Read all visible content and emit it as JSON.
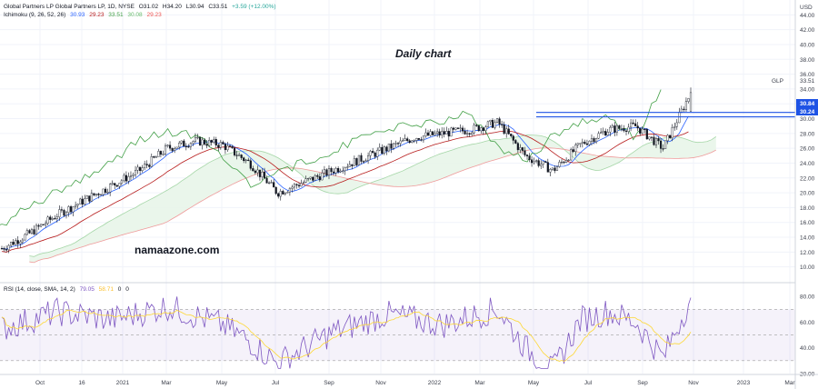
{
  "header": {
    "symbol_line": "Global Partners LP Global Partners LP, 1D, NYSE",
    "o": "O31.02",
    "h": "H34.20",
    "l": "L30.94",
    "c": "C33.51",
    "change": "+3.59 (+12.00%)",
    "ichimoku_label": "Ichimoku (9, 26, 52, 26)",
    "ichimoku_v1": "30.93",
    "ichimoku_v2": "29.23",
    "ichimoku_v3": "33.51",
    "ichimoku_v4": "30.08",
    "ichimoku_v5": "29.23"
  },
  "rsi_header": {
    "label": "RSI (14, close, SMA, 14, 2)",
    "v1": "79.05",
    "v2": "58.71",
    "v3": "0",
    "v4": "0"
  },
  "annotations": {
    "daily_chart": "Daily chart",
    "watermark": "namaazone.com"
  },
  "currency": "USD",
  "ticker": {
    "symbol": "GLP",
    "price": "33.51",
    "level_upper": "30.84",
    "level_lower": "30.24"
  },
  "colors": {
    "candle_up": "#26a69a",
    "candle_body": "#131722",
    "tenkan": "#2962ff",
    "kijun": "#b71c1c",
    "chikou": "#43a047",
    "span_a": "#a5d6a7",
    "span_b": "#ef9a9a",
    "rsi_line": "#7e57c2",
    "rsi_ma": "#fdd835",
    "hline": "#1e53e5"
  },
  "chart_data": [
    {
      "type": "candlestick",
      "ylim": [
        8,
        46
      ],
      "y_ticks": [
        "10.00",
        "12.00",
        "14.00",
        "16.00",
        "18.00",
        "20.00",
        "22.00",
        "24.00",
        "26.00",
        "28.00",
        "30.00",
        "32.00",
        "34.00",
        "36.00",
        "38.00",
        "40.00",
        "42.00",
        "44.00"
      ],
      "x_ticks": [
        "Oct",
        "16",
        "2021",
        "Mar",
        "May",
        "Jul",
        "Sep",
        "Nov",
        "2022",
        "Mar",
        "May",
        "Jul",
        "Sep",
        "Nov",
        "2023",
        "Mar"
      ],
      "horizontal_levels": [
        30.84,
        30.24
      ],
      "last_close": 33.51,
      "price_path": {
        "x_months": [
          0,
          1,
          2,
          3,
          4,
          5,
          6,
          7,
          8,
          9,
          10,
          11,
          12,
          13,
          14,
          15,
          16,
          17,
          18,
          19,
          20,
          21,
          22,
          23,
          24,
          25
        ],
        "close": [
          12.5,
          14.5,
          17.0,
          19.0,
          21.0,
          23.0,
          26.0,
          27.0,
          26.5,
          24.0,
          20.0,
          21.5,
          23.0,
          24.5,
          26.0,
          27.5,
          28.0,
          28.5,
          29.5,
          25.0,
          23.0,
          26.5,
          28.5,
          29.0,
          26.0,
          33.51
        ]
      }
    },
    {
      "type": "line",
      "name": "RSI",
      "ylim": [
        20,
        90
      ],
      "y_ticks": [
        "20.00",
        "40.00",
        "60.00",
        "80.00"
      ],
      "bands": [
        70,
        50,
        30
      ],
      "last_value": 79.05,
      "rsi_path": {
        "x_months": [
          0,
          2,
          4,
          6,
          8,
          9,
          10,
          12,
          14,
          16,
          18,
          19,
          20,
          21,
          22,
          23,
          24,
          25
        ],
        "value": [
          55,
          68,
          62,
          72,
          58,
          45,
          28,
          52,
          66,
          58,
          70,
          40,
          22,
          62,
          68,
          60,
          32,
          79
        ]
      }
    }
  ]
}
